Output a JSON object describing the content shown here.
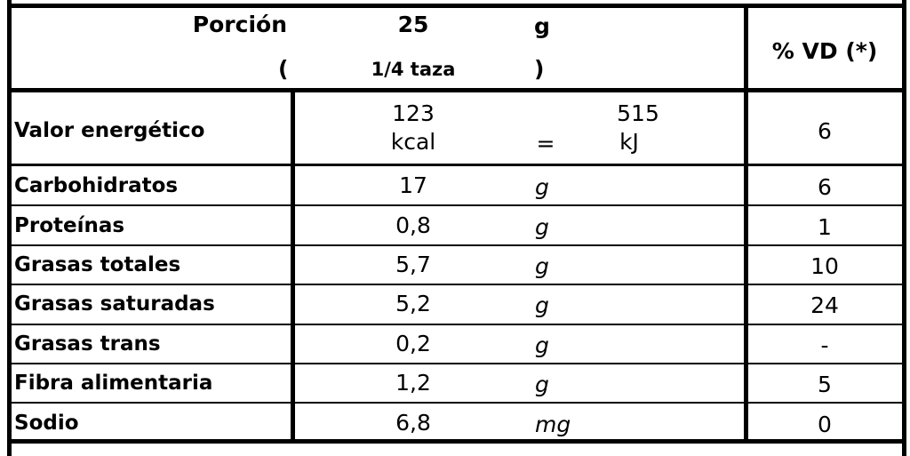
{
  "header": {
    "portion_label": "Porción",
    "portion_value": "25",
    "portion_unit": "g",
    "household_open": "(",
    "household": "1/4 taza",
    "household_close": ")",
    "vd_header": "% VD (*)"
  },
  "energy": {
    "label": "Valor energético",
    "kcal_value": "123",
    "kcal_unit": "kcal",
    "equals": "=",
    "kj_value": "515",
    "kj_unit": "kJ",
    "vd": "6"
  },
  "rows": [
    [
      "Carbohidratos",
      "17",
      "g",
      "6"
    ],
    [
      "Proteínas",
      "0,8",
      "g",
      "1"
    ],
    [
      "Grasas totales",
      "5,7",
      "g",
      "10"
    ],
    [
      "Grasas saturadas",
      "5,2",
      "g",
      "24"
    ],
    [
      "Grasas trans",
      "0,2",
      "g",
      "-"
    ],
    [
      "Fibra alimentaria",
      "1,2",
      "g",
      "5"
    ],
    [
      "Sodio",
      "6,8",
      "mg",
      "0"
    ]
  ]
}
